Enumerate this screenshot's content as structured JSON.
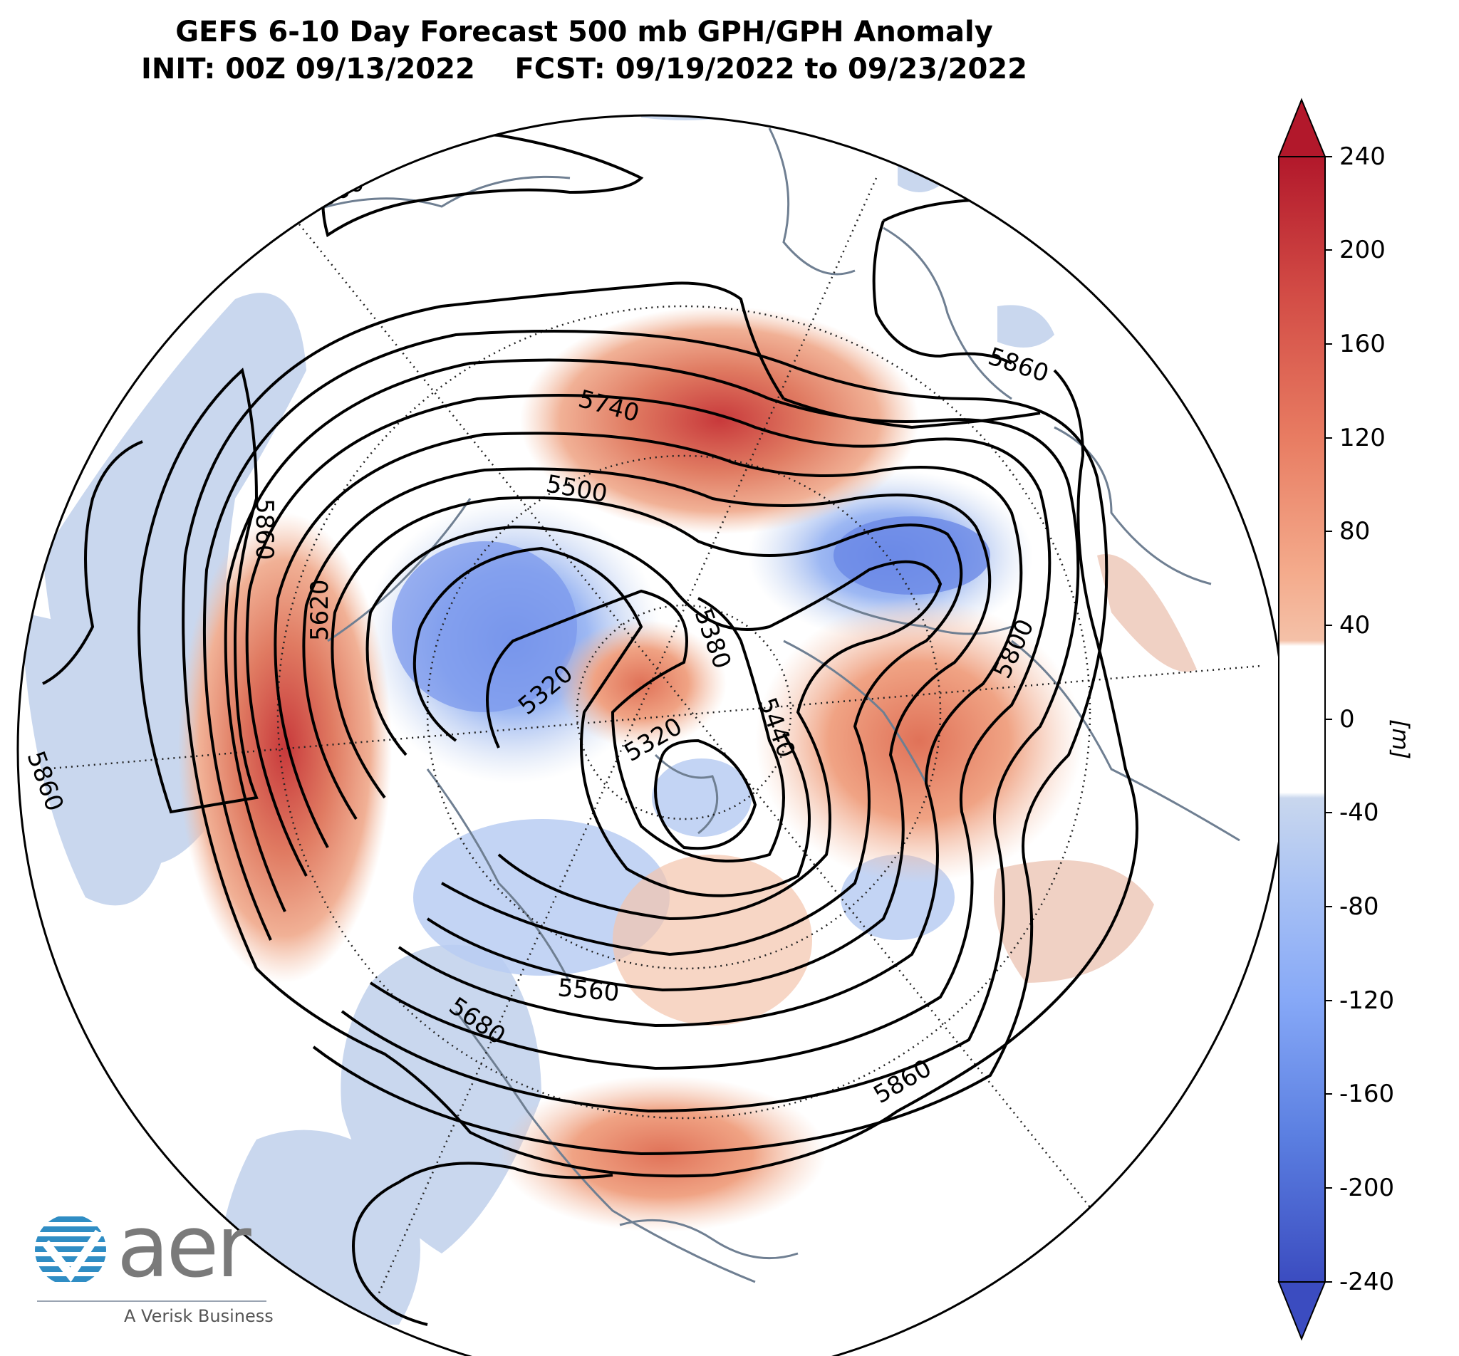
{
  "title": {
    "line1": "GEFS 6-10 Day Forecast 500 mb GPH/GPH Anomaly",
    "line2": "INIT: 00Z 09/13/2022    FCST: 09/19/2022 to 09/23/2022"
  },
  "colorbar": {
    "units": "[m]",
    "ticks": [
      "240",
      "200",
      "160",
      "120",
      "80",
      "40",
      "0",
      "-40",
      "-80",
      "-120",
      "-160",
      "-200",
      "-240"
    ],
    "colors_top_to_bottom": [
      "#b2182b",
      "#c3303a",
      "#d24b45",
      "#de6452",
      "#e87c62",
      "#ef9474",
      "#f4ab8c",
      "#f4c1a8",
      "#ffffff",
      "#c9d7ee",
      "#b3c9f2",
      "#9bb9f6",
      "#86a8f7",
      "#6f93ee",
      "#5b7fe1",
      "#4a66cf",
      "#3b4cc0"
    ],
    "zero_band_color": "#ffffff"
  },
  "contour_labels": [
    "5860",
    "5860",
    "5860",
    "5860",
    "5860",
    "5740",
    "5500",
    "5620",
    "5320",
    "5320",
    "5380",
    "5440",
    "5800",
    "5560",
    "5680"
  ],
  "logo": {
    "wordmark": "aer",
    "tagline": "A Verisk Business",
    "brand_blue": "#2f8dc4",
    "brand_gray": "#7a7a7a"
  }
}
